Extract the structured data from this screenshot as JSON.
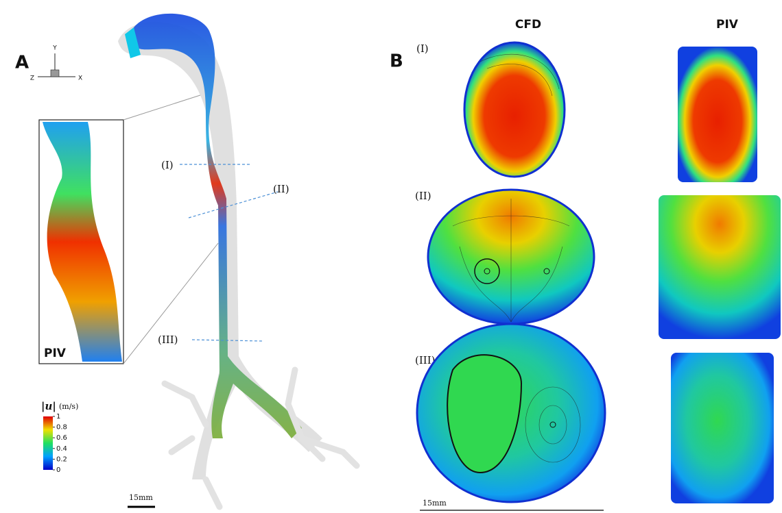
{
  "panel_a": {
    "label": "A",
    "axes": {
      "y": "Y",
      "z": "Z",
      "x": "X"
    },
    "inset_label": "PIV",
    "sections": [
      "(I)",
      "(II)",
      "(III)"
    ],
    "colorbar": {
      "title_symbol": "|u|",
      "title_unit": "(m/s)",
      "ticks": [
        1,
        0.8,
        0.6,
        0.4,
        0.2,
        0
      ]
    },
    "scale_bar": "15mm"
  },
  "panel_b": {
    "label": "B",
    "columns": [
      "CFD",
      "PIV"
    ],
    "rows": [
      "(I)",
      "(II)",
      "(III)"
    ],
    "scale_bar": "15mm"
  }
}
